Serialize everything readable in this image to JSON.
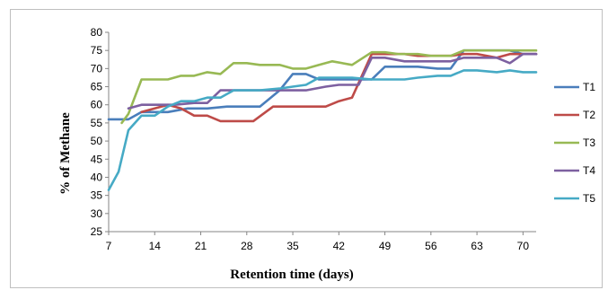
{
  "chart_data": {
    "type": "line",
    "title": "",
    "xlabel": "Retention time (days)",
    "ylabel": "% of Methane",
    "xlim": [
      7,
      72
    ],
    "ylim": [
      25,
      80
    ],
    "xticks": [
      7,
      14,
      21,
      28,
      35,
      42,
      49,
      56,
      63,
      70
    ],
    "yticks": [
      25,
      30,
      35,
      40,
      45,
      50,
      55,
      60,
      65,
      70,
      75,
      80
    ],
    "grid": false,
    "legend_position": "right",
    "series": [
      {
        "name": "T1",
        "color": "#4a7ebb",
        "x": [
          7,
          10,
          12,
          16,
          19,
          22,
          25,
          30,
          33,
          35,
          37,
          39,
          42,
          45,
          47,
          49,
          52,
          54,
          57,
          59,
          61,
          63,
          66,
          68,
          70,
          72
        ],
        "y": [
          56,
          56,
          58,
          58,
          59,
          59,
          59.5,
          59.5,
          64,
          68.5,
          68.5,
          67,
          67,
          67,
          67,
          70.5,
          70.5,
          70.5,
          70,
          70,
          75,
          75,
          75,
          75,
          74,
          74
        ]
      },
      {
        "name": "T2",
        "color": "#be4b48",
        "x": [
          12,
          14,
          16,
          18,
          20,
          22,
          24,
          27,
          29,
          32,
          35,
          37,
          40,
          42,
          44,
          47,
          49,
          52,
          54,
          57,
          59,
          61,
          63,
          66,
          68,
          70,
          72
        ],
        "y": [
          58,
          59,
          60,
          59,
          57,
          57,
          55.5,
          55.5,
          55.5,
          59.5,
          59.5,
          59.5,
          59.5,
          61,
          62,
          74,
          74,
          74,
          73.5,
          73.5,
          73.5,
          74,
          74,
          73,
          74,
          74,
          74
        ]
      },
      {
        "name": "T3",
        "color": "#98b954",
        "x": [
          9,
          10,
          12,
          14,
          16,
          18,
          20,
          22,
          24,
          26,
          28,
          30,
          33,
          35,
          37,
          39,
          41,
          44,
          47,
          49,
          51,
          54,
          56,
          59,
          61,
          63,
          66,
          68,
          70,
          72
        ],
        "y": [
          55,
          57.5,
          67,
          67,
          67,
          68,
          68,
          69,
          68.5,
          71.5,
          71.5,
          71,
          71,
          70,
          70,
          71,
          72,
          71,
          74.5,
          74.5,
          74,
          74,
          73.5,
          73.5,
          75,
          75,
          75,
          75,
          75,
          75
        ]
      },
      {
        "name": "T4",
        "color": "#7d60a0",
        "x": [
          10,
          12,
          14,
          17,
          20,
          22,
          24,
          27,
          29,
          32,
          35,
          37,
          40,
          42,
          45,
          47,
          49,
          52,
          54,
          57,
          59,
          61,
          63,
          66,
          68,
          70,
          72
        ],
        "y": [
          59,
          60,
          60,
          60,
          60.5,
          60.5,
          64,
          64,
          64,
          64,
          64,
          64,
          65,
          65.5,
          65.5,
          73,
          73,
          72,
          72,
          72,
          72,
          73,
          73,
          73,
          71.5,
          74,
          74
        ]
      },
      {
        "name": "T5",
        "color": "#46aac5",
        "x": [
          7,
          8.5,
          10,
          12,
          14,
          16,
          18,
          20,
          22,
          24,
          26,
          28,
          30,
          33,
          35,
          37,
          39,
          42,
          44,
          47,
          49,
          52,
          54,
          57,
          59,
          61,
          63,
          66,
          68,
          70,
          72
        ],
        "y": [
          36.5,
          41.5,
          53,
          57,
          57,
          59.5,
          61,
          61,
          62,
          62,
          64,
          64,
          64,
          64.5,
          65,
          65.5,
          67.5,
          67.5,
          67.5,
          67,
          67,
          67,
          67.5,
          68,
          68,
          69.5,
          69.5,
          69,
          69.5,
          69,
          69
        ]
      }
    ]
  }
}
